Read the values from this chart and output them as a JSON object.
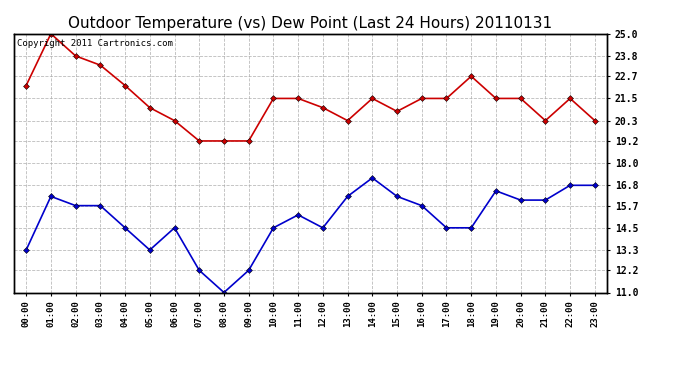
{
  "title": "Outdoor Temperature (vs) Dew Point (Last 24 Hours) 20110131",
  "copyright": "Copyright 2011 Cartronics.com",
  "x_labels": [
    "00:00",
    "01:00",
    "02:00",
    "03:00",
    "04:00",
    "05:00",
    "06:00",
    "07:00",
    "08:00",
    "09:00",
    "10:00",
    "11:00",
    "12:00",
    "13:00",
    "14:00",
    "15:00",
    "16:00",
    "17:00",
    "18:00",
    "19:00",
    "20:00",
    "21:00",
    "22:00",
    "23:00"
  ],
  "temp_red": [
    22.2,
    25.0,
    23.8,
    23.3,
    22.2,
    21.0,
    20.3,
    19.2,
    19.2,
    19.2,
    21.5,
    21.5,
    21.0,
    20.3,
    21.5,
    20.8,
    21.5,
    21.5,
    22.7,
    21.5,
    21.5,
    20.3,
    21.5,
    20.3
  ],
  "dew_blue": [
    13.3,
    16.2,
    15.7,
    15.7,
    14.5,
    13.3,
    14.5,
    12.2,
    11.0,
    12.2,
    14.5,
    15.2,
    14.5,
    16.2,
    17.2,
    16.2,
    15.7,
    14.5,
    14.5,
    16.5,
    16.0,
    16.0,
    16.8,
    16.8
  ],
  "ylim": [
    11.0,
    25.0
  ],
  "yticks": [
    11.0,
    12.2,
    13.3,
    14.5,
    15.7,
    16.8,
    18.0,
    19.2,
    20.3,
    21.5,
    22.7,
    23.8,
    25.0
  ],
  "red_color": "#cc0000",
  "blue_color": "#0000cc",
  "bg_color": "#ffffff",
  "grid_color": "#aaaaaa",
  "title_fontsize": 11,
  "copyright_fontsize": 6.5
}
